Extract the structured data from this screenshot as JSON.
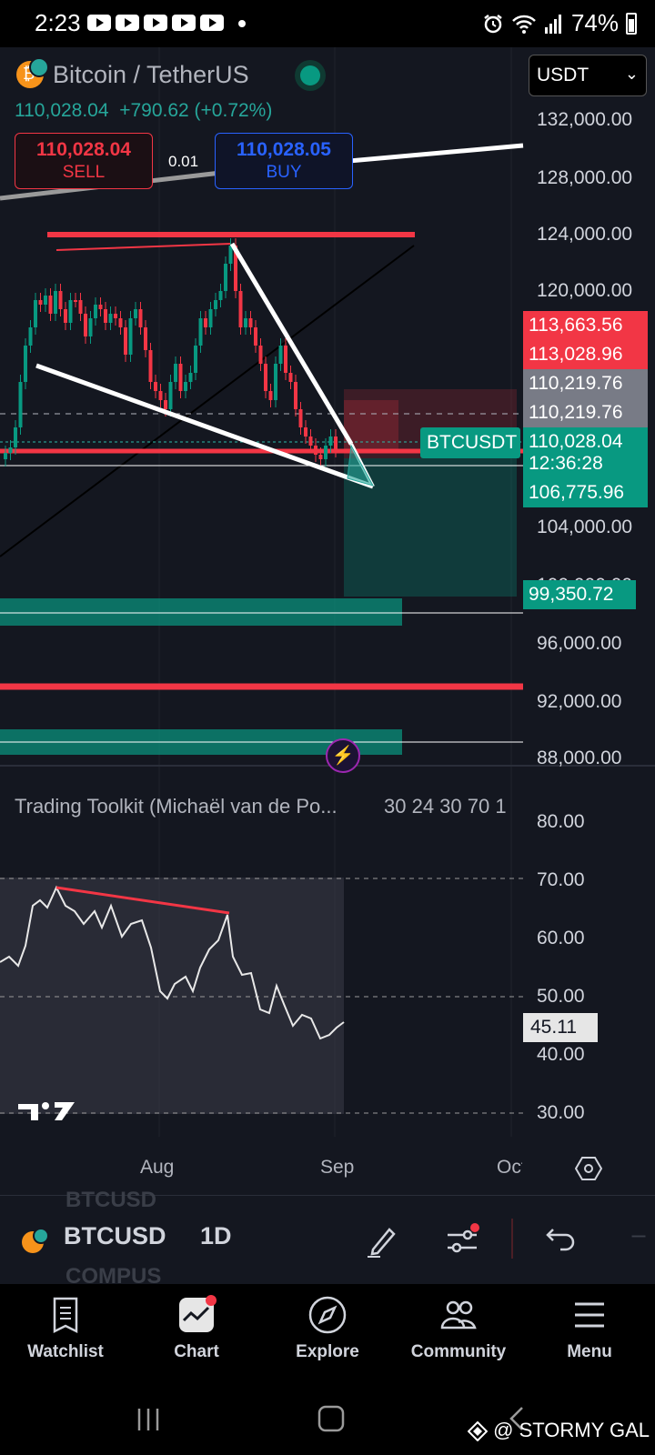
{
  "status": {
    "time": "2:23",
    "battery": "74%"
  },
  "symbol": {
    "title": "Bitcoin / TetherUS",
    "price": "110,028.04",
    "change": "+790.62 (+0.72%)"
  },
  "trade": {
    "sell_price": "110,028.04",
    "sell_label": "SELL",
    "spread": "0.01",
    "buy_price": "110,028.05",
    "buy_label": "BUY"
  },
  "currency": "USDT",
  "price_axis": [
    "132,000.00",
    "128,000.00",
    "124,000.00",
    "120,000.00",
    "104,000.00",
    "96,000.00",
    "92,000.00",
    "88,000.00"
  ],
  "price_tags": {
    "red_1": "113,663.56",
    "red_2": "113,028.96",
    "gray_1": "110,219.76",
    "gray_2": "110,219.76",
    "last": "110,028.04",
    "countdown": "12:36:28",
    "green_1": "106,775.96",
    "green_2": "99,350.72",
    "hidden_axis": "100,000.00"
  },
  "chart_symbol_label": "BTCUSDT",
  "indicator": {
    "title": "Trading Toolkit (Michaël van de Po...",
    "params": "30 24 30 70 1",
    "axis": [
      "80.00",
      "70.00",
      "60.00",
      "50.00",
      "40.00",
      "30.00"
    ],
    "current": "45.11"
  },
  "time_axis": [
    "Aug",
    "Sep",
    "Oct"
  ],
  "toolbar": {
    "symbol": "BTCUSD",
    "interval": "1D",
    "ghost_top": "BTCUSD",
    "ghost_bottom": "COMPUS"
  },
  "nav": [
    {
      "label": "Watchlist",
      "icon": "watchlist-icon"
    },
    {
      "label": "Chart",
      "icon": "chart-icon"
    },
    {
      "label": "Explore",
      "icon": "compass-icon"
    },
    {
      "label": "Community",
      "icon": "community-icon"
    },
    {
      "label": "Menu",
      "icon": "menu-icon"
    }
  ],
  "watermark": "@ STORMY GAL",
  "colors": {
    "up": "#089981",
    "down": "#f23645",
    "buy": "#2962ff",
    "background": "#141720"
  }
}
